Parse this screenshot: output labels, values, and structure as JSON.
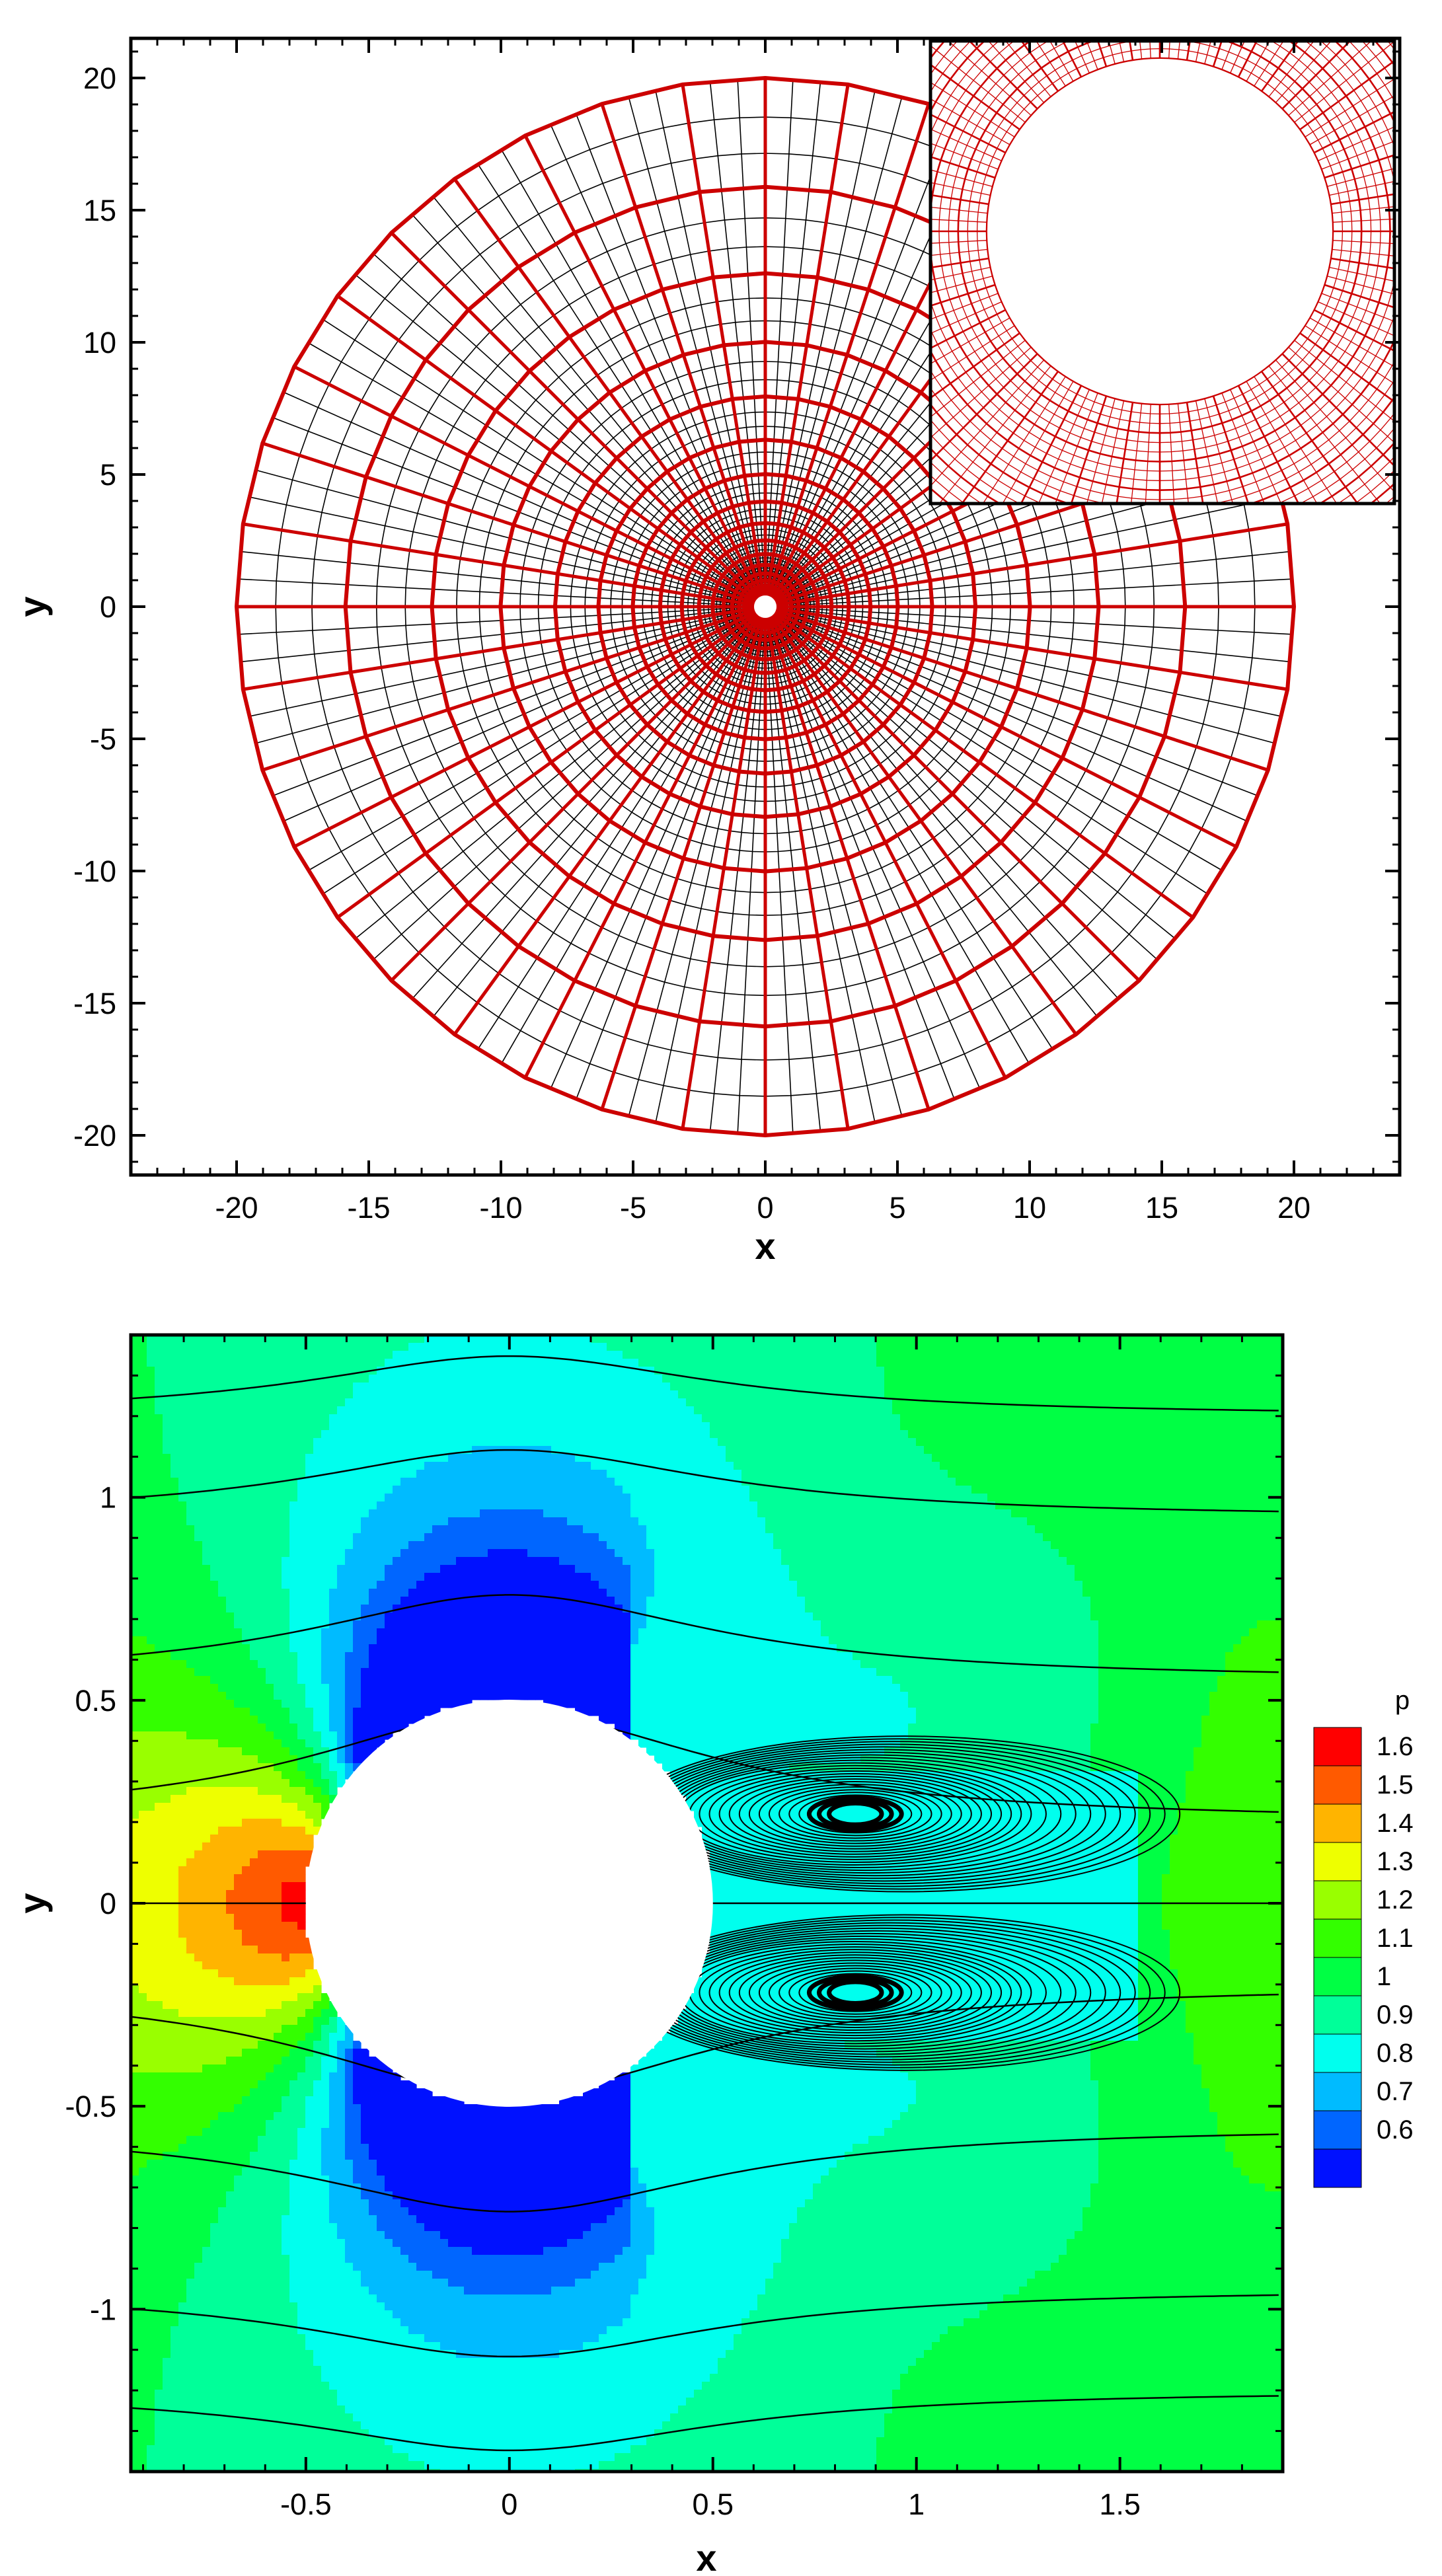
{
  "chart_data": [
    {
      "type": "mesh",
      "title": "",
      "xlabel": "x",
      "ylabel": "y",
      "xlim": [
        -24,
        24
      ],
      "ylim": [
        -21.5,
        21.5
      ],
      "xticks": [
        -20,
        -15,
        -10,
        -5,
        0,
        5,
        10,
        15,
        20
      ],
      "yticks": [
        -20,
        -15,
        -10,
        -5,
        0,
        5,
        10,
        15,
        20
      ],
      "domain": {
        "shape": "annulus",
        "inner_radius": 0.5,
        "outer_radius": 20
      },
      "coarse_grid": {
        "radial_lines": 40,
        "rings": 16,
        "color": "#cc0000"
      },
      "fine_grid": {
        "refinement": 3,
        "color": "#000000"
      },
      "inset": {
        "description": "zoomed view near cylinder",
        "color": "#cc0000"
      }
    },
    {
      "type": "contour",
      "title": "",
      "xlabel": "x",
      "ylabel": "y",
      "xlim": [
        -0.93,
        1.9
      ],
      "ylim": [
        -1.4,
        1.4
      ],
      "xticks": [
        -0.5,
        0,
        0.5,
        1,
        1.5
      ],
      "xtick_labels": [
        "-0.5",
        "0",
        "0.5",
        "1",
        "1.5"
      ],
      "yticks": [
        -1,
        -0.5,
        0,
        0.5,
        1
      ],
      "ytick_labels": [
        "-1",
        "-0.5",
        "0",
        "0.5",
        "1"
      ],
      "cylinder": {
        "center": [
          0,
          0
        ],
        "radius": 0.5
      },
      "legend": {
        "title": "p",
        "position": "right",
        "levels": [
          {
            "label": "1.6",
            "color": "#ff0000"
          },
          {
            "label": "1.5",
            "color": "#ff5a00"
          },
          {
            "label": "1.4",
            "color": "#ffb400"
          },
          {
            "label": "1.3",
            "color": "#eeff00"
          },
          {
            "label": "1.2",
            "color": "#99ff00"
          },
          {
            "label": "1.1",
            "color": "#33ff00"
          },
          {
            "label": "1",
            "color": "#00ff44"
          },
          {
            "label": "0.9",
            "color": "#00ff99"
          },
          {
            "label": "0.8",
            "color": "#00ffee"
          },
          {
            "label": "0.7",
            "color": "#00bbff"
          },
          {
            "label": "0.6",
            "color": "#0066ff"
          },
          {
            "label": "",
            "color": "#0011ff"
          }
        ]
      },
      "streamline_seeds_y": [
        -1.2,
        -0.95,
        -0.55,
        -0.2,
        0,
        0.2,
        0.55,
        0.95,
        1.2
      ],
      "vortices": [
        {
          "center": [
            0.85,
            0.22
          ]
        },
        {
          "center": [
            0.85,
            -0.22
          ]
        }
      ]
    }
  ]
}
